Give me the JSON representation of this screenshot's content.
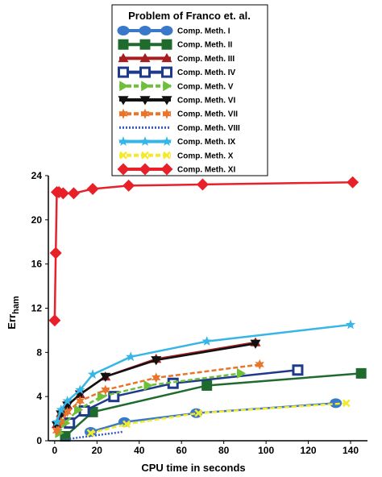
{
  "chart_data": {
    "type": "line",
    "legend": {
      "title": "Problem of Franco et. al.",
      "position": "top-center"
    },
    "xlabel": "CPU time in seconds",
    "ylabel": "Err",
    "ylabel_sub": "ham",
    "xlim": [
      -3,
      148
    ],
    "ylim": [
      0,
      24
    ],
    "xticks": [
      0,
      20,
      40,
      60,
      80,
      100,
      120,
      140
    ],
    "yticks": [
      0,
      4,
      8,
      12,
      16,
      20,
      24
    ],
    "grid": false,
    "series": [
      {
        "name": "Comp. Meth. I",
        "color": "#3a78c9",
        "marker": "circle",
        "dash": "",
        "x": [
          17,
          33,
          67,
          133
        ],
        "y": [
          0.8,
          1.7,
          2.5,
          3.4
        ]
      },
      {
        "name": "Comp. Meth. II",
        "color": "#1f6b2e",
        "marker": "square",
        "dash": "",
        "x": [
          5,
          18,
          72,
          145
        ],
        "y": [
          0.4,
          2.6,
          5.0,
          6.1
        ]
      },
      {
        "name": "Comp. Meth. III",
        "color": "#a61e22",
        "marker": "triangle-up",
        "dash": "",
        "x": [
          1,
          3,
          6,
          12,
          24,
          48,
          95
        ],
        "y": [
          1.5,
          2.5,
          3.2,
          4.2,
          5.8,
          7.4,
          8.9
        ]
      },
      {
        "name": "Comp. Meth. IV",
        "color": "#1e3a8a",
        "marker": "square-open",
        "dash": "",
        "x": [
          7,
          14,
          28,
          56,
          115
        ],
        "y": [
          1.6,
          2.7,
          4.0,
          5.2,
          6.4
        ]
      },
      {
        "name": "Comp. Meth. V",
        "color": "#6fbf3a",
        "marker": "triangle-right",
        "dash": "6,3",
        "x": [
          2,
          5,
          11,
          22,
          44,
          88
        ],
        "y": [
          0.7,
          1.6,
          2.8,
          4.0,
          5.0,
          6.1
        ]
      },
      {
        "name": "Comp. Meth. VI",
        "color": "#111111",
        "marker": "triangle-down",
        "dash": "",
        "x": [
          1,
          3,
          6,
          12,
          24,
          48,
          95
        ],
        "y": [
          1.4,
          2.4,
          3.2,
          4.2,
          5.8,
          7.3,
          8.8
        ]
      },
      {
        "name": "Comp. Meth. VII",
        "color": "#e8752a",
        "marker": "star6",
        "dash": "6,3",
        "x": [
          1,
          3,
          6,
          12,
          24,
          48,
          97
        ],
        "y": [
          0.9,
          1.7,
          2.6,
          3.6,
          4.6,
          5.7,
          6.9
        ]
      },
      {
        "name": "Comp. Meth. VIII",
        "color": "#3b5bbf",
        "marker": "none",
        "dash": "2,2",
        "x": [
          4,
          8,
          16,
          32
        ],
        "y": [
          0.1,
          0.2,
          0.4,
          0.8
        ]
      },
      {
        "name": "Comp. Meth. IX",
        "color": "#35b6e6",
        "marker": "star",
        "dash": "",
        "x": [
          1,
          3,
          6,
          12,
          18,
          36,
          72,
          140
        ],
        "y": [
          1.7,
          2.8,
          3.6,
          4.6,
          6.0,
          7.6,
          9.0,
          10.5
        ]
      },
      {
        "name": "Comp. Meth. X",
        "color": "#f3ea2a",
        "marker": "x",
        "dash": "6,3",
        "x": [
          17,
          34,
          68,
          138
        ],
        "y": [
          0.7,
          1.5,
          2.5,
          3.4
        ]
      },
      {
        "name": "Comp. Meth. XI",
        "color": "#e8202a",
        "marker": "diamond",
        "dash": "",
        "x": [
          0,
          0.5,
          1,
          2,
          4,
          9,
          18,
          35,
          70,
          141
        ],
        "y": [
          10.9,
          17.0,
          22.5,
          22.5,
          22.4,
          22.4,
          22.8,
          23.1,
          23.2,
          23.4
        ]
      }
    ]
  }
}
